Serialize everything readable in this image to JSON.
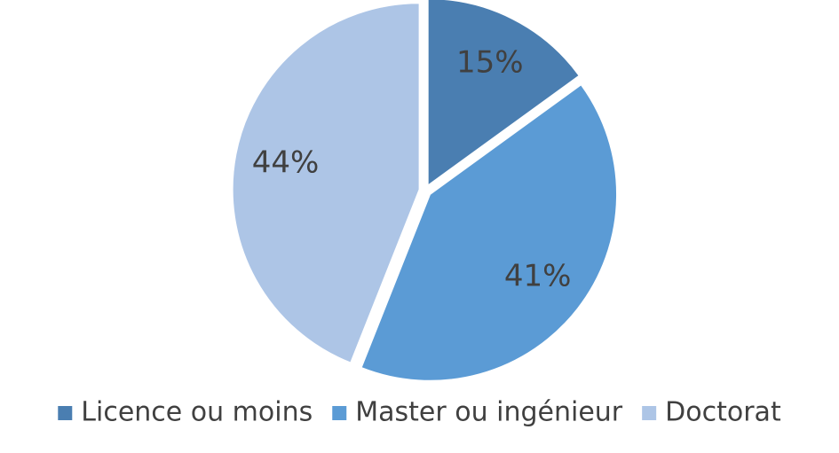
{
  "chart_data": {
    "type": "pie",
    "categories": [
      "Licence ou moins",
      "Master ou ingénieur",
      "Doctorat"
    ],
    "values": [
      15,
      41,
      44
    ],
    "value_labels": [
      "15%",
      "41%",
      "44%"
    ],
    "colors": [
      "#4a7eb1",
      "#5b9bd5",
      "#adc5e6"
    ],
    "legend": "bottom"
  }
}
